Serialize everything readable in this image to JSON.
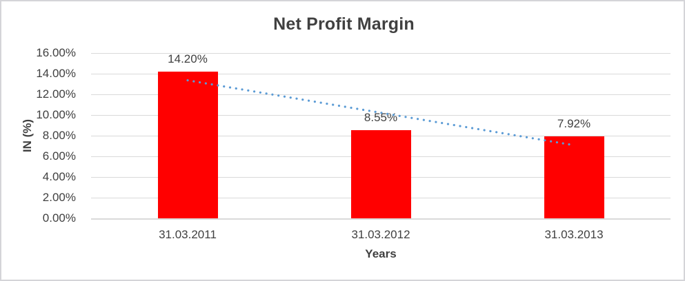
{
  "chart_data": {
    "type": "bar",
    "title": "Net Profit Margin",
    "xlabel": "Years",
    "ylabel": "IN (%)",
    "categories": [
      "31.03.2011",
      "31.03.2012",
      "31.03.2013"
    ],
    "values": [
      14.2,
      8.55,
      7.92
    ],
    "data_labels": [
      "14.20%",
      "8.55%",
      "7.92%"
    ],
    "ylim": [
      0,
      16
    ],
    "ytick_step": 2,
    "ytick_labels": [
      "0.00%",
      "2.00%",
      "4.00%",
      "6.00%",
      "8.00%",
      "10.00%",
      "12.00%",
      "14.00%",
      "16.00%"
    ],
    "grid": true,
    "legend": "none",
    "bar_color": "#FF0000",
    "trendline": {
      "type": "linear",
      "style": "dotted",
      "color": "#5B9BD5",
      "start_value": 13.36,
      "end_value": 7.08
    }
  },
  "style": {
    "text_color": "#404040",
    "grid_color": "#D9D9D9",
    "frame_border_color": "#D4D4D8",
    "background": "#FFFFFF"
  }
}
